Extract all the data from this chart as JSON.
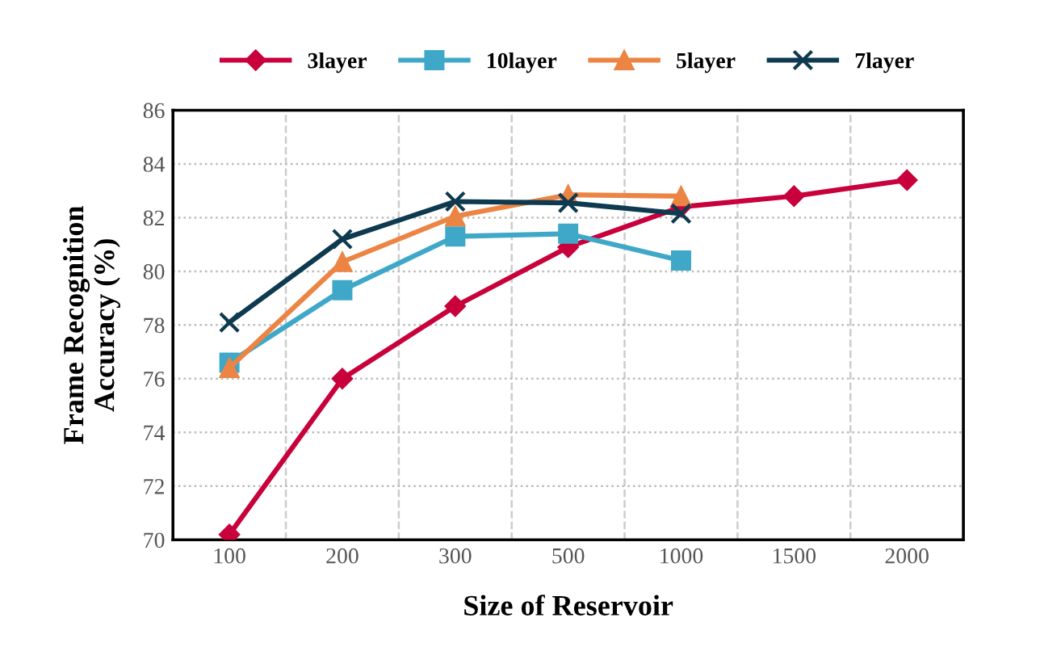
{
  "chart_data": {
    "type": "line",
    "xlabel": "Size of Reservoir",
    "ylabel": "Frame Recognition\nAccuracy (%)",
    "categories": [
      "100",
      "200",
      "300",
      "500",
      "1000",
      "1500",
      "2000"
    ],
    "series": [
      {
        "name": "3layer",
        "color": "#c8003c",
        "marker": "diamond",
        "values": [
          70.2,
          76.0,
          78.7,
          80.9,
          82.4,
          82.8,
          83.4
        ]
      },
      {
        "name": "10layer",
        "color": "#3fa8c8",
        "marker": "square",
        "values": [
          76.6,
          79.3,
          81.3,
          81.4,
          80.4,
          null,
          null
        ]
      },
      {
        "name": "5layer",
        "color": "#ec8444",
        "marker": "triangle",
        "values": [
          76.4,
          80.35,
          82.05,
          82.85,
          82.8,
          null,
          null
        ]
      },
      {
        "name": "7layer",
        "color": "#0e3a4f",
        "marker": "cross",
        "values": [
          78.1,
          81.2,
          82.6,
          82.55,
          82.15,
          null,
          null
        ]
      }
    ],
    "ylim": [
      70,
      86
    ],
    "yticks": [
      70,
      72,
      74,
      76,
      78,
      80,
      82,
      84,
      86
    ],
    "grid": true,
    "legend": "top",
    "line_style": "solid"
  }
}
